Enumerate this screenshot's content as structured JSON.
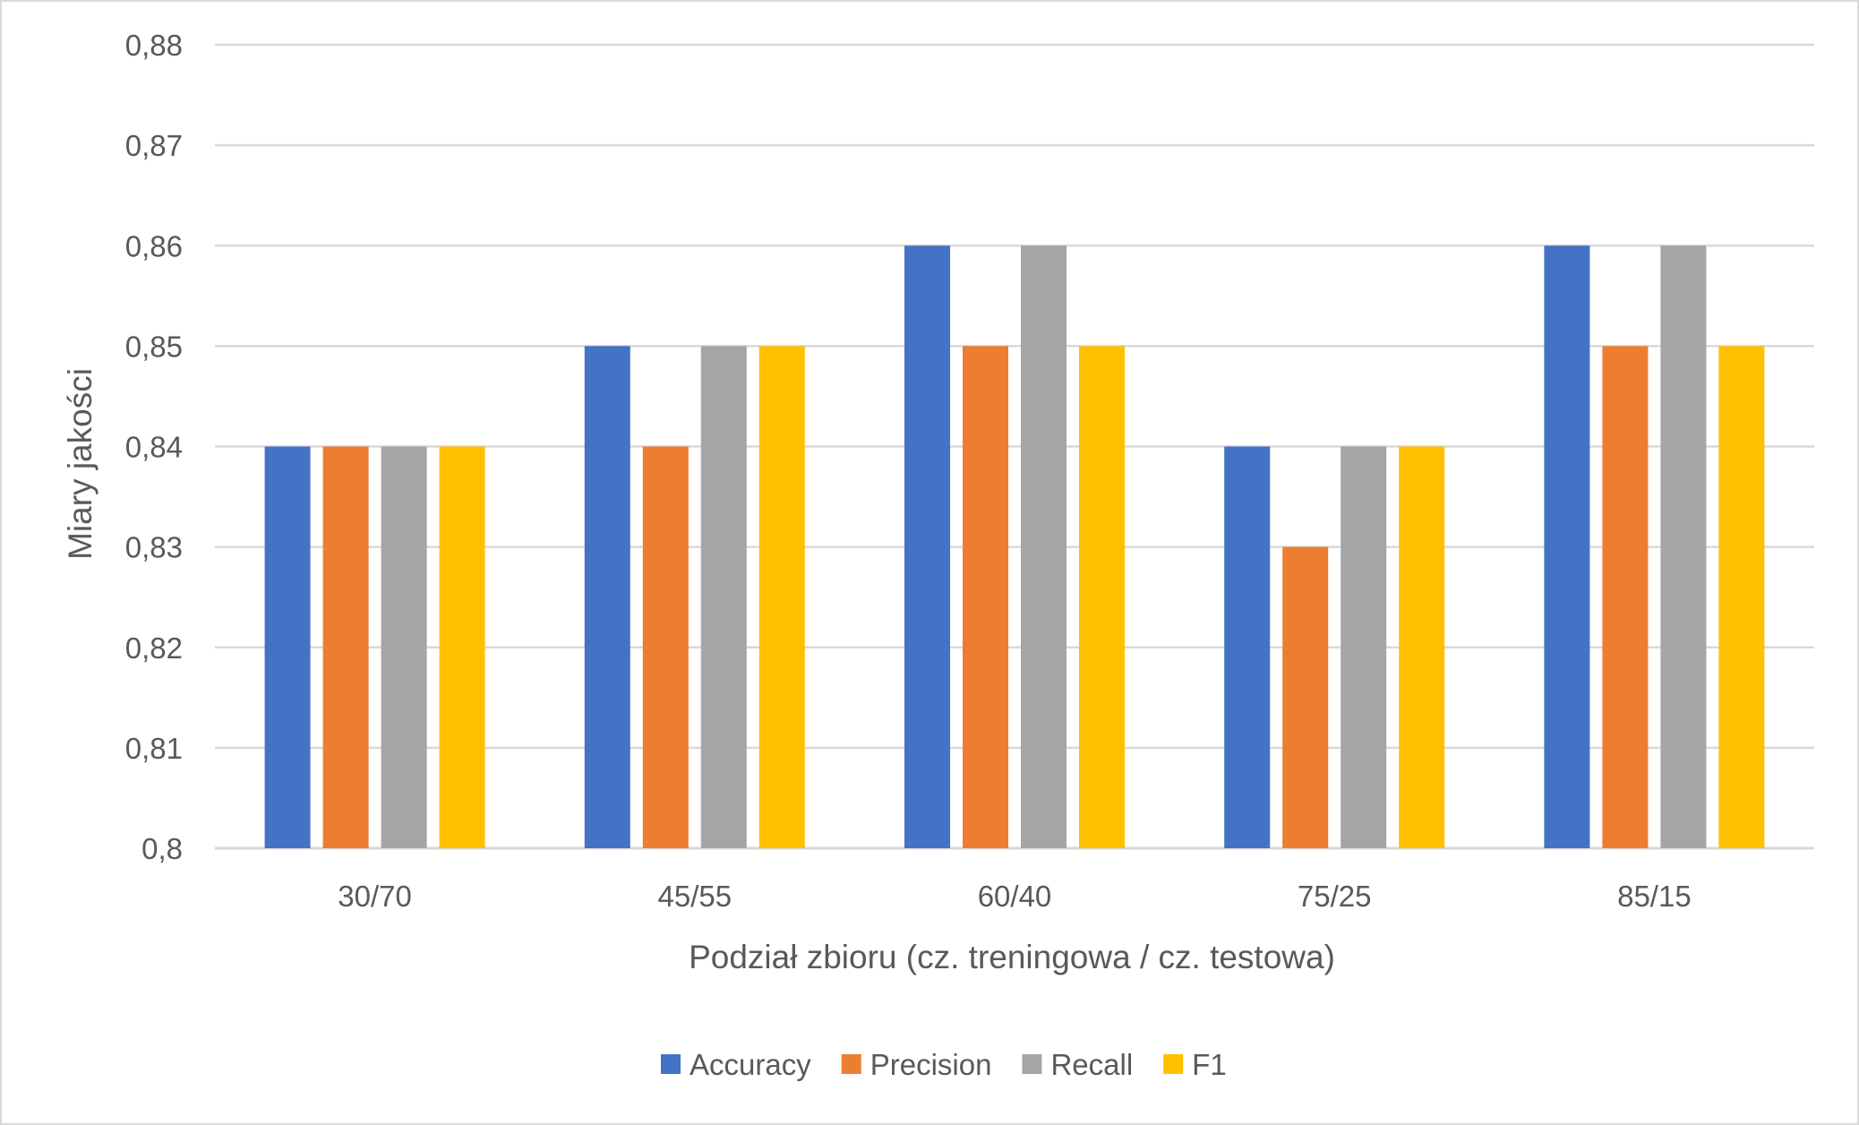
{
  "chart_data": {
    "type": "bar",
    "title": "",
    "xlabel": "Podział zbioru (cz. treningowa / cz. testowa)",
    "ylabel": "Miary jakości",
    "categories": [
      "30/70",
      "45/55",
      "60/40",
      "75/25",
      "85/15"
    ],
    "series": [
      {
        "name": "Accuracy",
        "color": "#4472C4",
        "values": [
          0.84,
          0.85,
          0.86,
          0.84,
          0.86
        ]
      },
      {
        "name": "Precision",
        "color": "#ED7D31",
        "values": [
          0.84,
          0.84,
          0.85,
          0.83,
          0.85
        ]
      },
      {
        "name": "Recall",
        "color": "#A5A5A5",
        "values": [
          0.84,
          0.85,
          0.86,
          0.84,
          0.86
        ]
      },
      {
        "name": "F1",
        "color": "#FFC000",
        "values": [
          0.84,
          0.85,
          0.85,
          0.84,
          0.85
        ]
      }
    ],
    "ylim": [
      0.8,
      0.88
    ],
    "yticks": [
      "0,8",
      "0,81",
      "0,82",
      "0,83",
      "0,84",
      "0,85",
      "0,86",
      "0,87",
      "0,88"
    ],
    "grid": true,
    "legend_position": "bottom"
  }
}
